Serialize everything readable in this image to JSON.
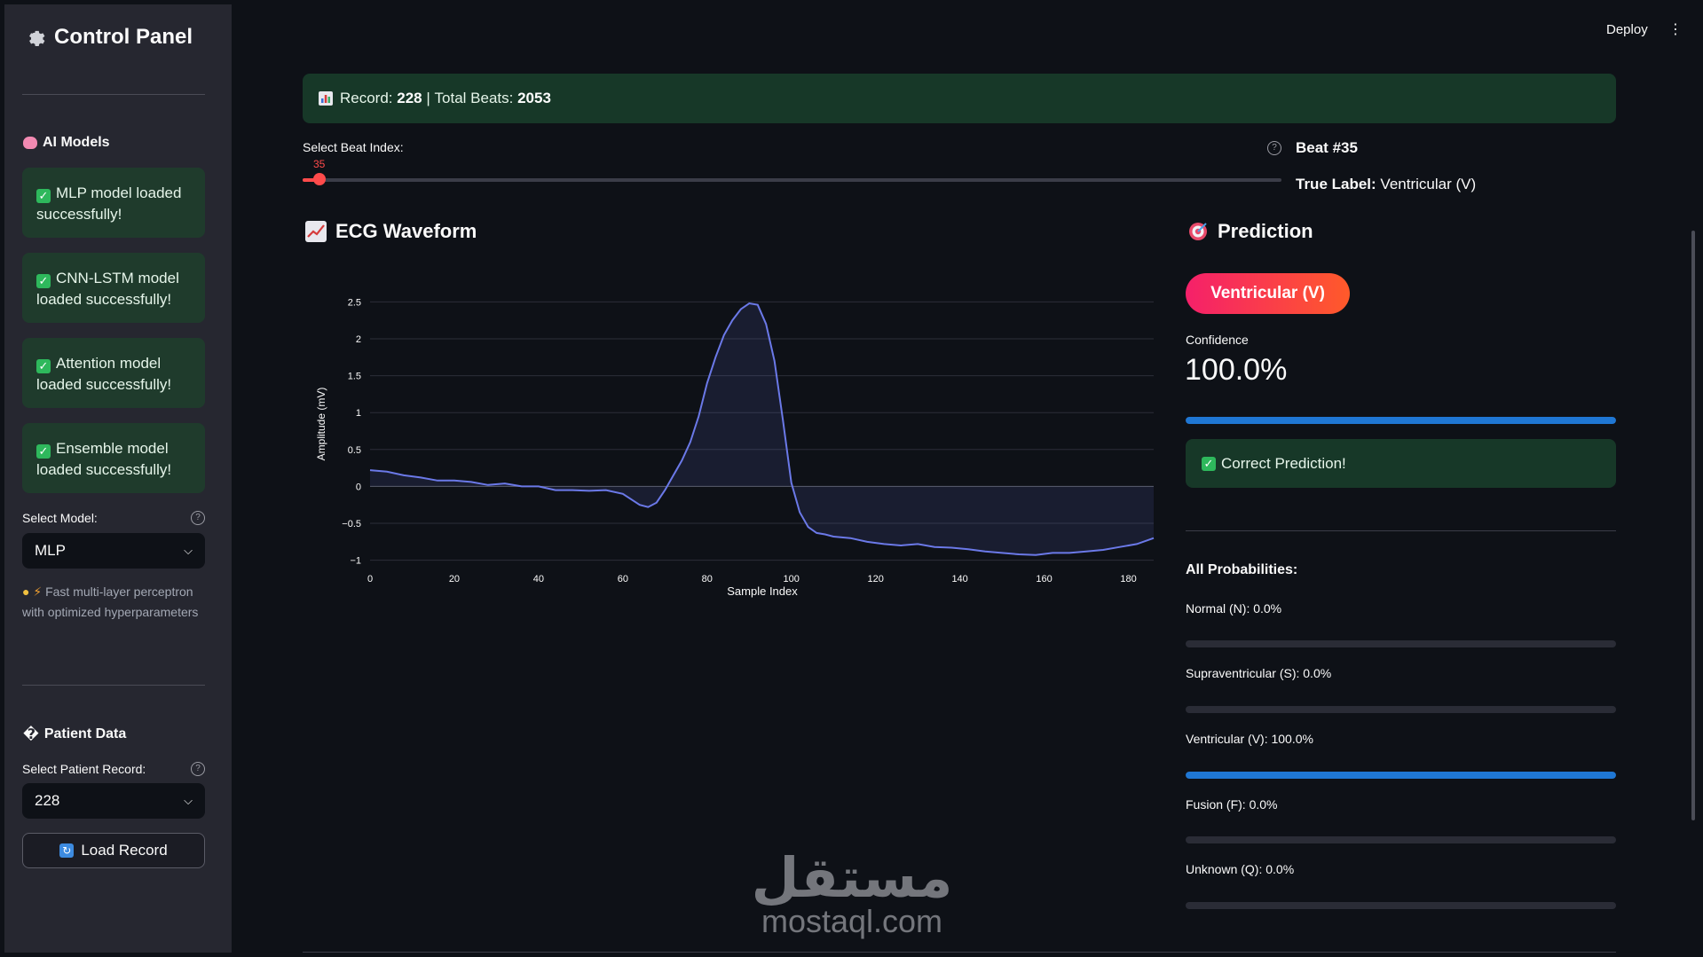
{
  "sidebar": {
    "title": "Control Panel",
    "models_heading": "AI Models",
    "alerts": [
      "MLP model loaded successfully!",
      "CNN-LSTM model loaded successfully!",
      "Attention model loaded successfully!",
      "Ensemble model loaded successfully!"
    ],
    "select_model_label": "Select Model:",
    "selected_model": "MLP",
    "model_caption": "Fast multi-layer perceptron with optimized hyperparameters",
    "patient_heading": "Patient Data",
    "patient_prefix": "�",
    "select_record_label": "Select Patient Record:",
    "selected_record": "228",
    "load_button": "Load Record"
  },
  "topbar": {
    "deploy": "Deploy"
  },
  "record": {
    "record_label": "Record:",
    "record_value": "228",
    "separator": "|",
    "beats_label": "Total Beats:",
    "beats_value": "2053"
  },
  "slider": {
    "label": "Select Beat Index:",
    "value": "35",
    "fraction": 0.017
  },
  "beat": {
    "title": "Beat #35",
    "true_label_key": "True Label:",
    "true_label_value": "Ventricular (V)"
  },
  "waveform": {
    "heading": "ECG Waveform"
  },
  "prediction": {
    "heading": "Prediction",
    "badge": "Ventricular (V)",
    "confidence_label": "Confidence",
    "confidence_value": "100.0%",
    "confidence_fraction": 1.0,
    "result": "Correct Prediction!",
    "all_probs_heading": "All Probabilities:",
    "probs": [
      {
        "label": "Normal (N): 0.0%",
        "fraction": 0.0
      },
      {
        "label": "Supraventricular (S): 0.0%",
        "fraction": 0.0
      },
      {
        "label": "Ventricular (V): 100.0%",
        "fraction": 1.0
      },
      {
        "label": "Fusion (F): 0.0%",
        "fraction": 0.0
      },
      {
        "label": "Unknown (Q): 0.0%",
        "fraction": 0.0
      }
    ]
  },
  "watermark": {
    "arabic": "مستقل",
    "latin": "mostaql.com"
  },
  "colors": {
    "accent_red": "#ff4b4b",
    "line": "#6b79e8",
    "success_bg": "#173828",
    "progress": "#1f77d4"
  },
  "chart_data": {
    "type": "area",
    "title": "",
    "xlabel": "Sample Index",
    "ylabel": "Amplitude (mV)",
    "xlim": [
      0,
      186
    ],
    "ylim": [
      -1.1,
      2.6
    ],
    "x_ticks": [
      0,
      20,
      40,
      60,
      80,
      100,
      120,
      140,
      160,
      180
    ],
    "y_ticks": [
      -1,
      -0.5,
      0,
      0.5,
      1,
      1.5,
      2,
      2.5
    ],
    "y_tick_labels": [
      "−1",
      "−0.5",
      "0",
      "0.5",
      "1",
      "1.5",
      "2",
      "2.5"
    ],
    "grid": true,
    "series": [
      {
        "x": [
          0,
          4,
          8,
          12,
          16,
          20,
          24,
          28,
          32,
          36,
          40,
          44,
          48,
          52,
          56,
          60,
          64,
          66,
          68,
          70,
          72,
          74,
          76,
          78,
          80,
          82,
          84,
          86,
          88,
          90,
          92,
          94,
          96,
          98,
          100,
          102,
          104,
          106,
          108,
          110,
          114,
          118,
          122,
          126,
          130,
          134,
          138,
          142,
          146,
          150,
          154,
          158,
          162,
          166,
          170,
          174,
          178,
          182,
          186
        ],
        "y": [
          0.22,
          0.2,
          0.15,
          0.12,
          0.08,
          0.08,
          0.06,
          0.02,
          0.04,
          0.0,
          0.0,
          -0.05,
          -0.05,
          -0.06,
          -0.05,
          -0.1,
          -0.25,
          -0.28,
          -0.22,
          -0.05,
          0.15,
          0.35,
          0.6,
          0.95,
          1.4,
          1.75,
          2.05,
          2.25,
          2.4,
          2.48,
          2.46,
          2.2,
          1.7,
          0.9,
          0.05,
          -0.35,
          -0.55,
          -0.63,
          -0.65,
          -0.68,
          -0.7,
          -0.75,
          -0.78,
          -0.8,
          -0.78,
          -0.82,
          -0.83,
          -0.85,
          -0.88,
          -0.9,
          -0.92,
          -0.93,
          -0.9,
          -0.9,
          -0.88,
          -0.86,
          -0.82,
          -0.78,
          -0.7
        ]
      }
    ]
  }
}
